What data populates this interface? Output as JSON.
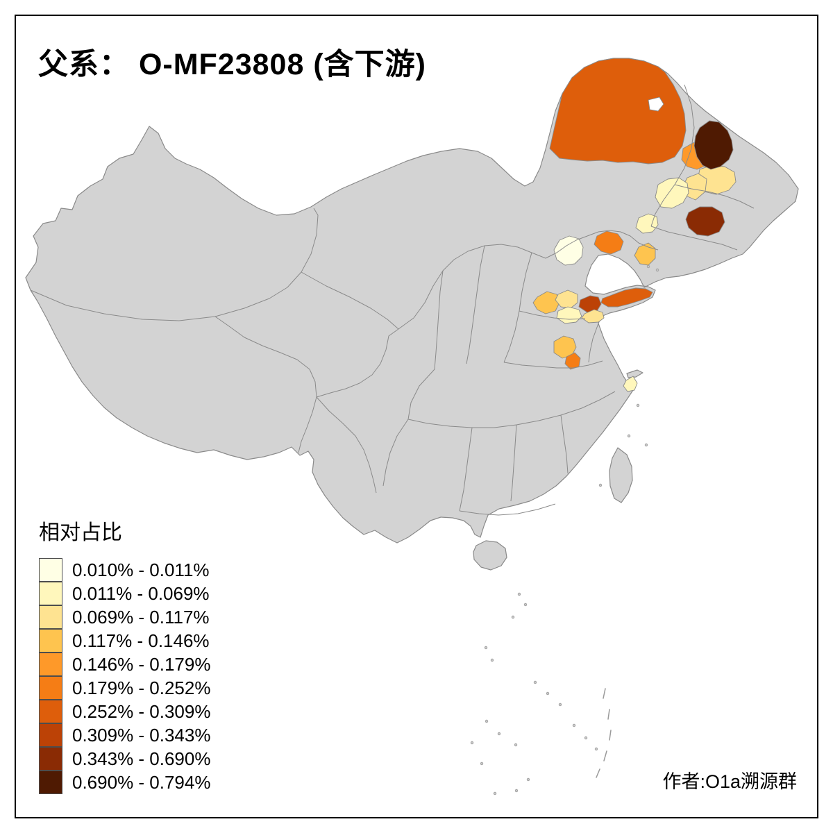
{
  "title": "父系： O-MF23808 (含下游)",
  "credit": "作者:O1a溯源群",
  "legend": {
    "title": "相对占比",
    "items": [
      {
        "label": "0.010% - 0.011%",
        "color": "#FFFFE5"
      },
      {
        "label": "0.011% - 0.069%",
        "color": "#FFF7BC"
      },
      {
        "label": "0.069% - 0.117%",
        "color": "#FEE391"
      },
      {
        "label": "0.117% - 0.146%",
        "color": "#FEC44F"
      },
      {
        "label": "0.146% - 0.179%",
        "color": "#FE9929"
      },
      {
        "label": "0.179% - 0.252%",
        "color": "#F57D15"
      },
      {
        "label": "0.252% - 0.309%",
        "color": "#DE5E0B"
      },
      {
        "label": "0.309% - 0.343%",
        "color": "#BC4206"
      },
      {
        "label": "0.343% - 0.690%",
        "color": "#8A2B04"
      },
      {
        "label": "0.690% - 0.794%",
        "color": "#4F1A02"
      }
    ]
  },
  "map": {
    "base_fill": "#D3D3D3",
    "border_color": "#8A8A8A",
    "background": "#FFFFFF",
    "regions": [
      {
        "id": "nei-mongol-ne",
        "class": 7
      },
      {
        "id": "ne-dark-1",
        "class": 10
      },
      {
        "id": "ne-orange-1",
        "class": 5
      },
      {
        "id": "ne-pale-1",
        "class": 3
      },
      {
        "id": "ne-pale-2",
        "class": 3
      },
      {
        "id": "ne-cream-1",
        "class": 2
      },
      {
        "id": "ne-dark-2",
        "class": 9
      },
      {
        "id": "ne-pale-3",
        "class": 2
      },
      {
        "id": "beijing",
        "class": 1
      },
      {
        "id": "hebei-ne",
        "class": 6
      },
      {
        "id": "liaoning-w",
        "class": 4
      },
      {
        "id": "shandong-nw",
        "class": 4
      },
      {
        "id": "shandong-mid",
        "class": 3
      },
      {
        "id": "shandong-c",
        "class": 8
      },
      {
        "id": "shandong-peninsula",
        "class": 7
      },
      {
        "id": "shandong-s1",
        "class": 2
      },
      {
        "id": "shandong-s2",
        "class": 3
      },
      {
        "id": "henan-n",
        "class": 4
      },
      {
        "id": "henan-s",
        "class": 6
      },
      {
        "id": "shanghai",
        "class": 2
      }
    ]
  }
}
